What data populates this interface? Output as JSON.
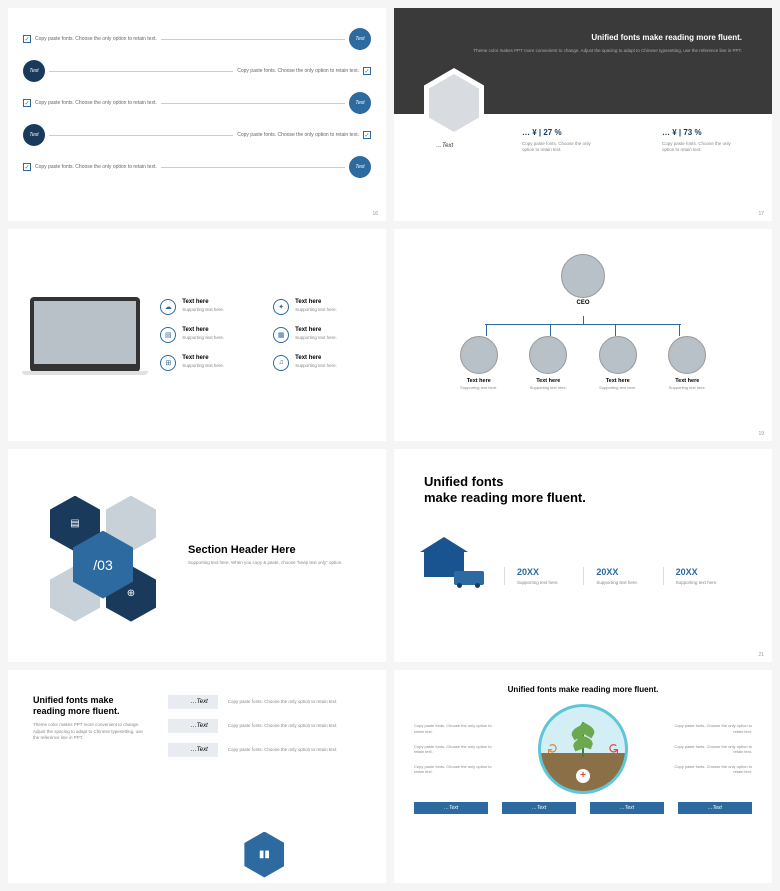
{
  "colors": {
    "primary": "#2c6aa0",
    "dark": "#1a3a5c",
    "gray": "#b8c0c8",
    "darkbg": "#3a3a3a"
  },
  "slide1": {
    "rows": [
      {
        "text": "Copy paste fonts. Choose the only option to retain text.",
        "label": "Text",
        "reverse": false,
        "color": "c-blue"
      },
      {
        "text": "Copy paste fonts. Choose the only option to retain text.",
        "label": "Text",
        "reverse": true,
        "color": "c-dark"
      },
      {
        "text": "Copy paste fonts. Choose the only option to retain text.",
        "label": "Text",
        "reverse": false,
        "color": "c-blue"
      },
      {
        "text": "Copy paste fonts. Choose the only option to retain text.",
        "label": "Text",
        "reverse": true,
        "color": "c-dark"
      },
      {
        "text": "Copy paste fonts. Choose the only option to retain text.",
        "label": "Text",
        "reverse": false,
        "color": "c-blue"
      }
    ],
    "num": "16"
  },
  "slide2": {
    "title": "Unified fonts make reading more fluent.",
    "sub": "Theme color makes PPT more convenient to change.\nAdjust the spacing to adapt to Chinese typesetting, use the reference line in PPT.",
    "hexLabel": "…Text",
    "stats": [
      {
        "val": "… ¥ | 27 %",
        "txt": "Copy paste fonts. Choose the only option to retain text."
      },
      {
        "val": "… ¥ | 73 %",
        "txt": "Copy paste fonts. Choose the only option to retain text."
      }
    ],
    "num": "17"
  },
  "slide3": {
    "items": [
      {
        "icon": "☁",
        "title": "Text here",
        "sub": "Supporting text here."
      },
      {
        "icon": "✦",
        "title": "Text here",
        "sub": "Supporting text here."
      },
      {
        "icon": "▤",
        "title": "Text here",
        "sub": "Supporting text here."
      },
      {
        "icon": "▦",
        "title": "Text here",
        "sub": "Supporting text here."
      },
      {
        "icon": "⊞",
        "title": "Text here",
        "sub": "Supporting text here."
      },
      {
        "icon": "♫",
        "title": "Text here",
        "sub": "Supporting text here."
      }
    ]
  },
  "slide4": {
    "ceo": "CEO",
    "kids": [
      {
        "title": "Text here",
        "sub": "Supporting text here."
      },
      {
        "title": "Text here",
        "sub": "Supporting text here."
      },
      {
        "title": "Text here",
        "sub": "Supporting text here."
      },
      {
        "title": "Text here",
        "sub": "Supporting text here."
      }
    ],
    "num": "19"
  },
  "slide5": {
    "num": "/03",
    "title": "Section Header Here",
    "sub": "Supporting text here.\nWhen you copy & paste, choose \"keep text only\" option."
  },
  "slide6": {
    "title1": "Unified fonts",
    "title2": "make reading more fluent.",
    "cols": [
      {
        "year": "20XX",
        "sub": "Supporting text here."
      },
      {
        "year": "20XX",
        "sub": "Supporting text here."
      },
      {
        "year": "20XX",
        "sub": "Supporting text here."
      }
    ],
    "num": "21"
  },
  "slide7": {
    "title": "Unified fonts make reading more fluent.",
    "sub": "Theme color makes PPT more convenient to change. Adjust the spacing to adapt to Chinese typesetting, use the reference line in PPT.",
    "items": [
      {
        "box": "…Text",
        "text": "Copy paste fonts. Choose the only option to retain text."
      },
      {
        "box": "…Text",
        "text": "Copy paste fonts. Choose the only option to retain text."
      },
      {
        "box": "…Text",
        "text": "Copy paste fonts. Choose the only option to retain text."
      }
    ]
  },
  "slide8": {
    "title": "Unified fonts make reading more fluent.",
    "left": [
      "Copy paste fonts. Choose the only option to retain text.",
      "Copy paste fonts. Choose the only option to retain text.",
      "Copy paste fonts. Choose the only option to retain text."
    ],
    "right": [
      "Copy paste fonts. Choose the only option to retain text.",
      "Copy paste fonts. Choose the only option to retain text.",
      "Copy paste fonts. Choose the only option to retain text."
    ],
    "tabs": [
      "…Text",
      "…Text",
      "…Text",
      "…Text"
    ]
  }
}
